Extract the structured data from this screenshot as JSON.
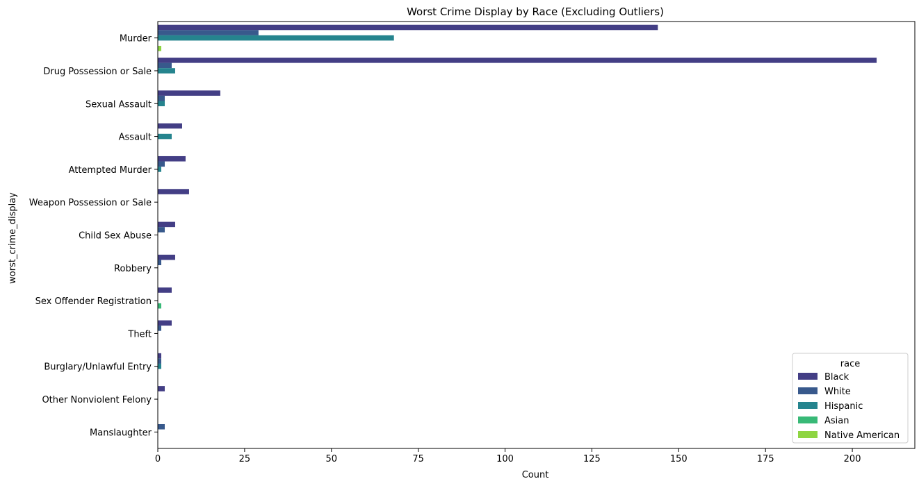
{
  "chart_data": {
    "type": "bar",
    "orientation": "horizontal",
    "title": "Worst Crime Display by Race (Excluding Outliers)",
    "xlabel": "Count",
    "ylabel": "worst_crime_display",
    "xlim": [
      0,
      218
    ],
    "xticks": [
      0,
      25,
      50,
      75,
      100,
      125,
      150,
      175,
      200
    ],
    "grid": false,
    "legend": {
      "title": "race",
      "placement": "lower-right"
    },
    "categories": [
      "Murder",
      "Drug Possession or Sale",
      "Sexual Assault",
      "Assault",
      "Attempted Murder",
      "Weapon Possession or Sale",
      "Child Sex Abuse",
      "Robbery",
      "Sex Offender Registration",
      "Theft",
      "Burglary/Unlawful Entry",
      "Other Nonviolent Felony",
      "Manslaughter"
    ],
    "series": [
      {
        "name": "Black",
        "color": "#433e85",
        "values": [
          144,
          207,
          18,
          7,
          8,
          9,
          5,
          5,
          4,
          4,
          1,
          2,
          0
        ]
      },
      {
        "name": "White",
        "color": "#38598c",
        "values": [
          29,
          4,
          2,
          0,
          2,
          0,
          2,
          1,
          0,
          1,
          1,
          0,
          2
        ]
      },
      {
        "name": "Hispanic",
        "color": "#25848e",
        "values": [
          68,
          5,
          2,
          4,
          1,
          0,
          0,
          0,
          0,
          0,
          1,
          0,
          0
        ]
      },
      {
        "name": "Asian",
        "color": "#38b977",
        "values": [
          0,
          0,
          0,
          0,
          0,
          0,
          0,
          0,
          1,
          0,
          0,
          0,
          0
        ]
      },
      {
        "name": "Native American",
        "color": "#8ed542",
        "values": [
          1,
          0,
          0,
          0,
          0,
          0,
          0,
          0,
          0,
          0,
          0,
          0,
          0
        ]
      }
    ]
  }
}
